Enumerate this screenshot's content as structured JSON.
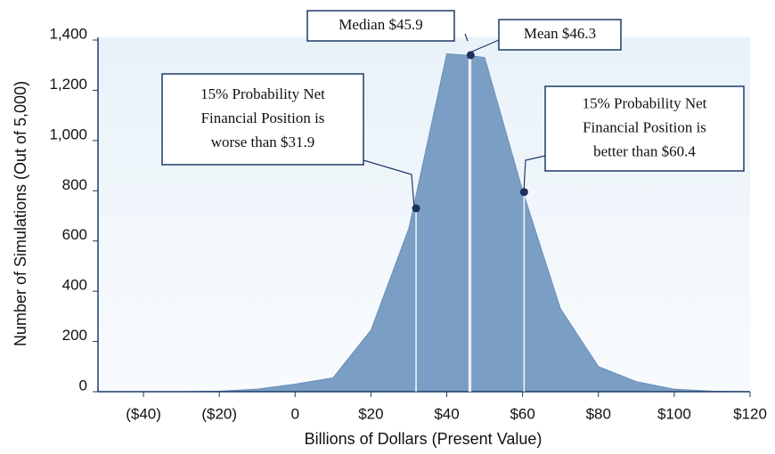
{
  "chart_data": {
    "type": "area",
    "x_label": "Billions of Dollars (Present Value)",
    "y_label": "Number of Simulations (Out of 5,000)",
    "x": [
      -50,
      -40,
      -30,
      -20,
      -10,
      0,
      10,
      20,
      30,
      40,
      45,
      50,
      60,
      70,
      80,
      90,
      100,
      110,
      120
    ],
    "values": [
      0,
      0,
      0,
      2,
      10,
      30,
      55,
      245,
      650,
      1345,
      1340,
      1330,
      800,
      330,
      100,
      40,
      10,
      2,
      0
    ],
    "color": "#7a9ec4",
    "xlim": [
      -52,
      120
    ],
    "xticks": [
      {
        "value": -40,
        "label": "($40)"
      },
      {
        "value": -20,
        "label": "($20)"
      },
      0,
      {
        "value": 20,
        "label": "$20"
      },
      {
        "value": 40,
        "label": "$40"
      },
      {
        "value": 60,
        "label": "$60"
      },
      {
        "value": 80,
        "label": "$80"
      },
      {
        "value": 100,
        "label": "$100"
      },
      {
        "value": 120,
        "label": "$120"
      }
    ],
    "ylim": [
      0,
      1400
    ],
    "yticks": [
      0,
      200,
      400,
      600,
      800,
      {
        "value": 1000,
        "label": "1,000"
      },
      {
        "value": 1200,
        "label": "1,200"
      },
      {
        "value": 1400,
        "label": "1,400"
      }
    ],
    "annotations": [
      {
        "lines": [
          "Median $45.9"
        ],
        "x": 45.9
      },
      {
        "lines": [
          "Mean $46.3"
        ],
        "x": 46.3,
        "y": 1340
      },
      {
        "lines": [
          "15% Probability Net",
          "Financial Position is",
          "worse than $31.9"
        ],
        "x": 31.9,
        "y": 730
      },
      {
        "lines": [
          "15% Probability Net",
          "Financial Position is",
          "better than $60.4"
        ],
        "x": 60.4,
        "y": 795
      }
    ]
  }
}
